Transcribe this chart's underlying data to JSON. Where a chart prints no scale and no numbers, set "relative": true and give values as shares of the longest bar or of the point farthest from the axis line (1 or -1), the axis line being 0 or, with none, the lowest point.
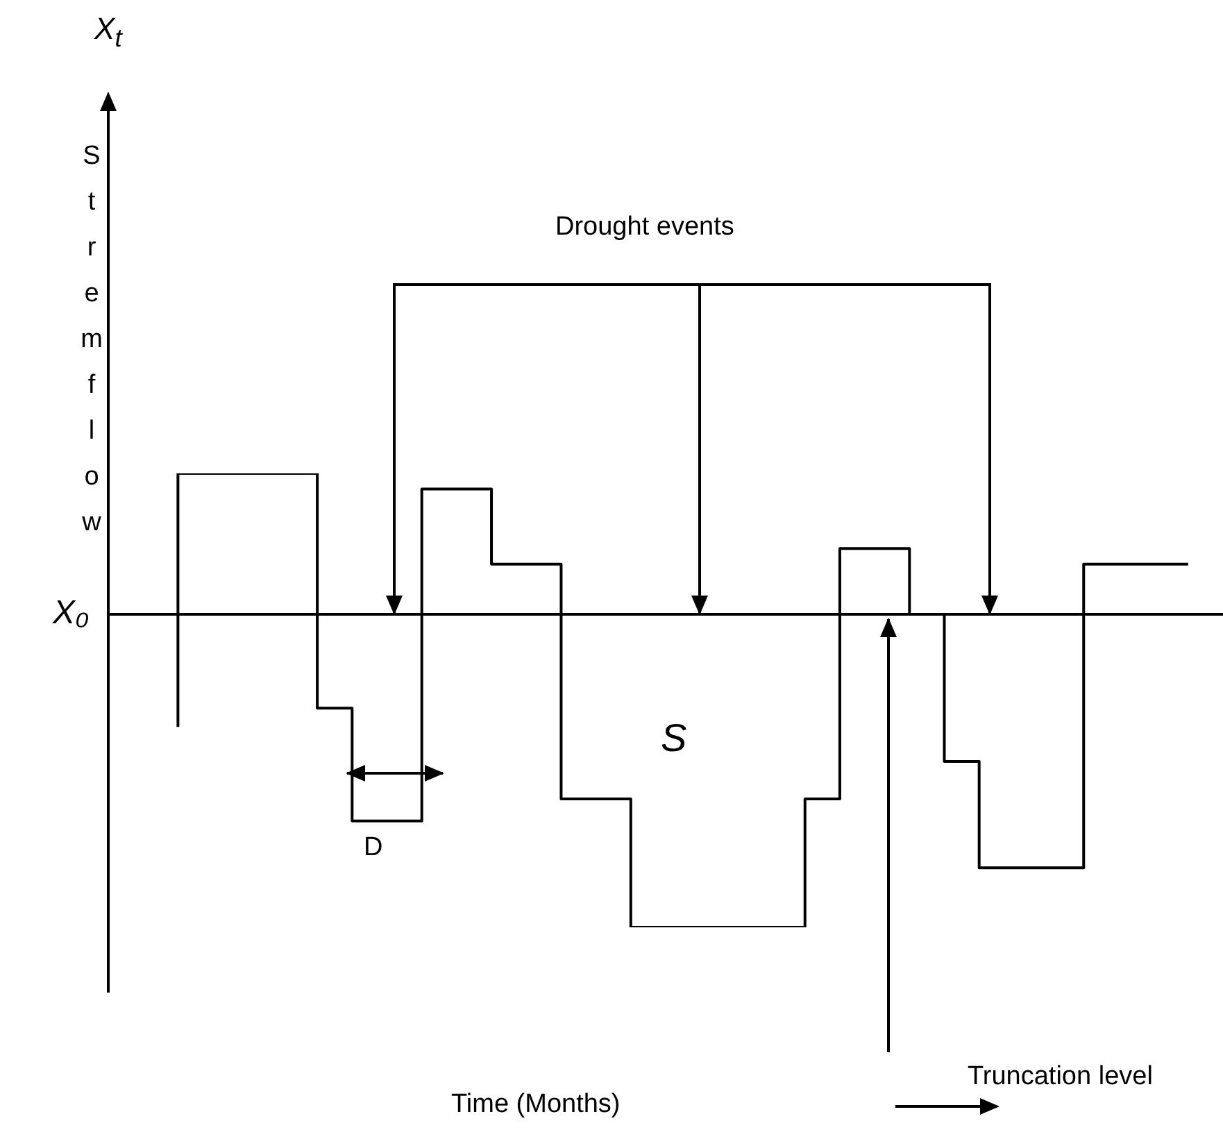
{
  "chart_data": {
    "type": "step",
    "title": "X$_{t}$",
    "ylabel": "Stremflow",
    "relative": true,
    "categories": [
      null,
      null,
      null,
      null,
      null,
      null,
      null,
      null,
      null,
      null,
      null,
      null,
      null,
      null,
      null,
      null,
      null,
      null,
      null,
      null,
      null,
      null,
      null,
      null,
      null,
      null,
      null,
      null,
      null,
      null,
      null,
      null,
      null
    ],
    "series": [
      {
        "color": "#000000",
        "values": [
          null,
          null,
          -0.36,
          0.45,
          0.45,
          0.45,
          0.45,
          -0.3,
          -0.66,
          -0.66,
          0.4,
          0.4,
          0.16,
          0.16,
          -0.59,
          -0.59,
          -1,
          -1,
          -1,
          -1,
          -1,
          -0.59,
          0.21,
          0.21,
          0,
          -0.47,
          -0.81,
          -0.81,
          -0.81,
          0.16,
          0.16,
          0.16,
          null
        ]
      }
    ],
    "ref_lines": [
      {
        "axis": "y",
        "value": 0,
        "label": "X₀"
      }
    ],
    "annotations": [
      "Drought events",
      "S",
      "D",
      "Truncation level",
      "Time (Months)"
    ],
    "legend": false,
    "marker": "none",
    "line_style": "solid"
  }
}
